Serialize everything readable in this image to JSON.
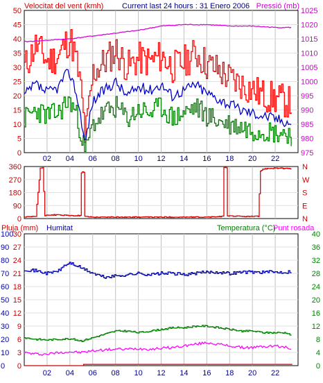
{
  "header": {
    "left_label": "Velocitat del vent (kmh)",
    "center_label": "Current last 24 hours : 31 Enero 2006",
    "right_label": "Pressió (mb)"
  },
  "bottom_header": {
    "rain_label": "Pluja (mm)",
    "humidity_label": "Humitat",
    "temp_label": "Temperatura (°C)",
    "dew_label": "Punt rosada"
  },
  "colors": {
    "frame": "#000000",
    "grid": "#c0c0c0",
    "gust": "#ff0000",
    "wind_avg": "#0000cc",
    "wind_min": "#008000",
    "pressure": "#dd00dd",
    "direction": "#dd0000",
    "humidity": "#0000aa",
    "temperature": "#008000",
    "dew": "#ff00ff",
    "rain": "#cc0000"
  },
  "chart_data": [
    {
      "type": "line",
      "name": "wind_pressure",
      "x_ticks": [
        "02",
        "04",
        "06",
        "08",
        "10",
        "12",
        "14",
        "16",
        "18",
        "20",
        "22"
      ],
      "y_left_ticks": [
        "0",
        "5",
        "10",
        "15",
        "20",
        "25",
        "30",
        "35",
        "40",
        "45",
        "50"
      ],
      "y_right_ticks": [
        "975",
        "980",
        "985",
        "990",
        "995",
        "1000",
        "1005",
        "1010",
        "1015",
        "1020",
        "1025"
      ],
      "ylim_left": [
        0,
        50
      ],
      "ylim_right": [
        975,
        1025
      ],
      "x_range_hours": [
        0,
        24
      ],
      "grid": true,
      "series": [
        {
          "id": "gust",
          "axis": "left",
          "x": [
            0,
            1,
            2,
            3,
            3.5,
            4,
            4.5,
            5,
            5.3,
            6,
            7,
            8,
            9,
            10,
            11,
            12,
            13,
            14,
            15,
            16,
            17,
            18,
            19,
            20,
            21,
            22,
            23,
            23.5
          ],
          "y": [
            30,
            38,
            32,
            34,
            38,
            40,
            33,
            20,
            5,
            28,
            32,
            36,
            30,
            33,
            32,
            34,
            30,
            32,
            35,
            31,
            29,
            26,
            24,
            22,
            20,
            19,
            18,
            17
          ]
        },
        {
          "id": "avg",
          "axis": "left",
          "x": [
            0,
            1,
            2,
            3,
            3.5,
            4,
            4.5,
            5,
            5.3,
            6,
            7,
            8,
            9,
            10,
            11,
            12,
            13,
            14,
            15,
            16,
            17,
            18,
            19,
            20,
            21,
            22,
            23,
            23.5
          ],
          "y": [
            20,
            24,
            21,
            23,
            27,
            28,
            22,
            12,
            3,
            18,
            22,
            25,
            20,
            23,
            22,
            24,
            20,
            22,
            24,
            21,
            19,
            17,
            15,
            14,
            13,
            12,
            11,
            10
          ]
        },
        {
          "id": "min",
          "axis": "left",
          "x": [
            0,
            1,
            2,
            3,
            3.5,
            4,
            4.5,
            5,
            5.3,
            6,
            7,
            8,
            9,
            10,
            11,
            12,
            13,
            14,
            15,
            16,
            17,
            18,
            19,
            20,
            21,
            22,
            23,
            23.5
          ],
          "y": [
            12,
            15,
            13,
            14,
            17,
            18,
            14,
            6,
            0,
            10,
            14,
            16,
            12,
            15,
            14,
            16,
            12,
            14,
            16,
            13,
            11,
            10,
            9,
            8,
            8,
            7,
            7,
            6
          ]
        },
        {
          "id": "pressure",
          "axis": "right",
          "x": [
            0,
            2,
            4,
            6,
            8,
            10,
            12,
            14,
            16,
            18,
            20,
            22,
            23.5
          ],
          "y": [
            1014,
            1014.5,
            1015,
            1016,
            1017,
            1018,
            1019.5,
            1020,
            1020,
            1019.5,
            1019.5,
            1019,
            1019
          ]
        }
      ]
    },
    {
      "type": "line",
      "name": "wind_direction",
      "y_left_ticks": [
        "0",
        "90",
        "180",
        "270",
        "360"
      ],
      "y_right_ticks": [
        "N",
        "E",
        "S",
        "W",
        "N"
      ],
      "ylim": [
        0,
        360
      ],
      "series": [
        {
          "id": "direction",
          "x": [
            0,
            1,
            1.4,
            1.6,
            1.8,
            2,
            3,
            4,
            4.9,
            5.0,
            5.2,
            5.3,
            6,
            8,
            10,
            12,
            14,
            16,
            17.4,
            17.5,
            17.7,
            17.8,
            19,
            20.5,
            20.7,
            21,
            22,
            23,
            23.5
          ],
          "y": [
            10,
            15,
            350,
            350,
            20,
            25,
            25,
            20,
            20,
            320,
            320,
            15,
            10,
            10,
            10,
            10,
            10,
            10,
            15,
            350,
            350,
            20,
            15,
            15,
            330,
            345,
            350,
            345,
            345
          ]
        }
      ]
    },
    {
      "type": "line",
      "name": "rain_humidity_temp",
      "y_rain_ticks": [
        "0",
        "3",
        "6",
        "9",
        "12",
        "15",
        "18",
        "21",
        "24",
        "27",
        "30"
      ],
      "y_hum_ticks": [
        "0",
        "10",
        "20",
        "30",
        "40",
        "50",
        "60",
        "70",
        "80",
        "90",
        "100"
      ],
      "y_temp_ticks": [
        "0",
        "4",
        "8",
        "12",
        "16",
        "20",
        "24",
        "28",
        "32",
        "36",
        "40"
      ],
      "ylim_rain": [
        0,
        30
      ],
      "ylim_hum": [
        0,
        100
      ],
      "ylim_temp": [
        0,
        40
      ],
      "series": [
        {
          "id": "humidity",
          "axis": "hum",
          "x": [
            0,
            1,
            2,
            3,
            3.5,
            4,
            5,
            6,
            7,
            8,
            9,
            10,
            11,
            12,
            13,
            14,
            15,
            16,
            17,
            18,
            19,
            20,
            21,
            22,
            23,
            23.5
          ],
          "y": [
            73,
            72,
            70,
            72,
            76,
            78,
            74,
            70,
            67,
            68,
            69,
            70,
            69,
            70,
            70,
            69,
            70,
            71,
            71,
            70,
            71,
            71,
            71,
            71,
            71,
            72
          ]
        },
        {
          "id": "temperature",
          "axis": "temp",
          "x": [
            0,
            1,
            2,
            3,
            4,
            5,
            6,
            7,
            8,
            9,
            10,
            11,
            12,
            13,
            14,
            15,
            16,
            17,
            18,
            19,
            20,
            21,
            22,
            23,
            23.5
          ],
          "y": [
            8.5,
            8,
            7.8,
            8,
            8.2,
            7.5,
            8.5,
            9.5,
            10.5,
            10.5,
            10,
            10.5,
            11,
            11.5,
            11.5,
            12,
            12,
            11.5,
            11,
            10.5,
            10.5,
            10,
            10,
            10,
            9
          ]
        },
        {
          "id": "dew",
          "axis": "temp",
          "x": [
            0,
            1,
            2,
            3,
            4,
            5,
            6,
            7,
            8,
            9,
            10,
            11,
            12,
            13,
            14,
            15,
            16,
            17,
            18,
            19,
            20,
            21,
            22,
            23,
            23.5
          ],
          "y": [
            4,
            3.5,
            3.5,
            4,
            4.2,
            4,
            4.5,
            4.8,
            5,
            5,
            5.2,
            5,
            5.3,
            5.5,
            6,
            6.5,
            7,
            6.5,
            6,
            5.5,
            5.5,
            5.8,
            6,
            5.5,
            5
          ]
        },
        {
          "id": "rain",
          "axis": "rain",
          "x": [
            0,
            5,
            5.2,
            23.5
          ],
          "y": [
            0,
            0,
            0.3,
            0.3
          ]
        }
      ]
    }
  ]
}
